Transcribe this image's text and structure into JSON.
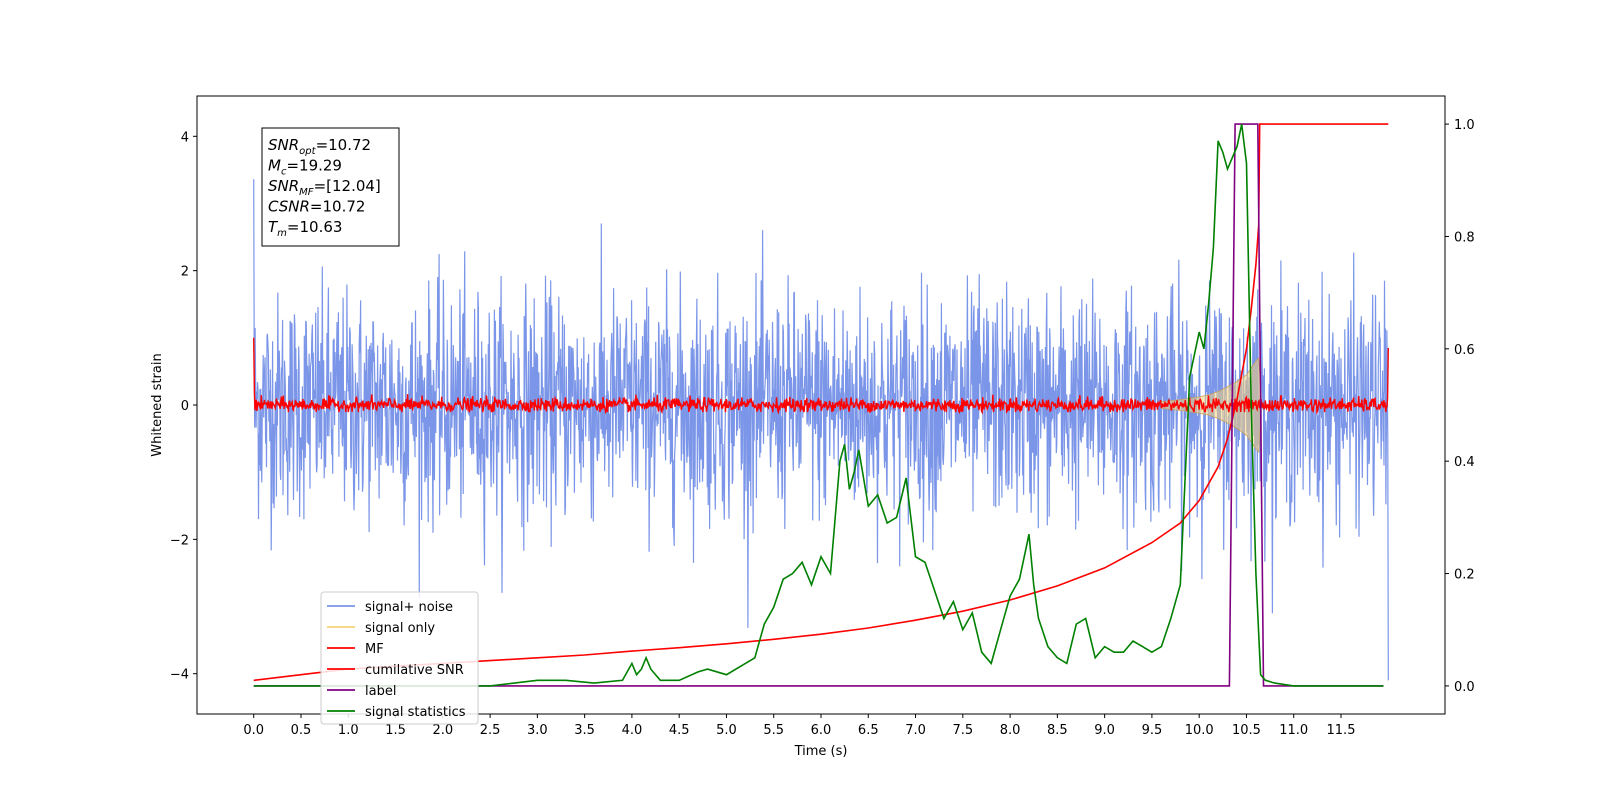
{
  "chart_data": {
    "type": "line",
    "xlabel": "Time (s)",
    "ylabel": "Whitened strain",
    "xlim": [
      -0.6,
      12.6
    ],
    "ylim": [
      -4.6,
      4.6
    ],
    "y2lim": [
      -0.05,
      1.05
    ],
    "grid": false,
    "legend_position": "lower-left",
    "x_ticks": [
      0.0,
      0.5,
      1.0,
      1.5,
      2.0,
      2.5,
      3.0,
      3.5,
      4.0,
      4.5,
      5.0,
      5.5,
      6.0,
      6.5,
      7.0,
      7.5,
      8.0,
      8.5,
      9.0,
      9.5,
      10.0,
      10.5,
      11.0,
      11.5
    ],
    "x_tick_labels": [
      "0.0",
      "0.5",
      "1.0",
      "1.5",
      "2.0",
      "2.5",
      "3.0",
      "3.5",
      "4.0",
      "4.5",
      "5.0",
      "5.5",
      "6.0",
      "6.5",
      "7.0",
      "7.5",
      "8.0",
      "8.5",
      "9.0",
      "9.5",
      "10.0",
      "10.5",
      "11.0",
      "11.5"
    ],
    "y_ticks": [
      -4,
      -2,
      0,
      2,
      4
    ],
    "y_tick_labels": [
      "−4",
      "−2",
      "0",
      "2",
      "4"
    ],
    "y2_ticks": [
      0.0,
      0.2,
      0.4,
      0.6,
      0.8,
      1.0
    ],
    "y2_tick_labels": [
      "0.0",
      "0.2",
      "0.4",
      "0.6",
      "0.8",
      "1.0"
    ],
    "annotation": {
      "lines": [
        {
          "base": "SNR",
          "sub": "opt",
          "value": "=10.72"
        },
        {
          "base": "M",
          "sub": "c",
          "value": "=19.29"
        },
        {
          "base": "SNR",
          "sub": "MF",
          "value": "=[12.04]"
        },
        {
          "base": "CSNR",
          "sub": "",
          "value": "=10.72"
        },
        {
          "base": "T",
          "sub": "m",
          "value": "=10.63"
        }
      ]
    },
    "series": [
      {
        "name": "signal+ noise",
        "color": "#7b96e8",
        "axis": "left",
        "kind": "noise",
        "x_range": [
          0.0,
          12.0
        ],
        "center": 0.0,
        "typical_amplitude": 1.5,
        "max_abs": 4.2,
        "final_x": 12.0,
        "final_y": -4.1
      },
      {
        "name": "signal only",
        "color": "#f5d27a",
        "axis": "left",
        "kind": "chirp",
        "x": [
          9.6,
          9.8,
          10.0,
          10.1,
          10.2,
          10.3,
          10.4,
          10.5,
          10.55,
          10.6,
          10.63,
          10.66
        ],
        "envelope": [
          0.05,
          0.08,
          0.12,
          0.15,
          0.2,
          0.27,
          0.35,
          0.45,
          0.55,
          0.65,
          0.7,
          0.0
        ]
      },
      {
        "name": "MF",
        "color": "#ff0000",
        "axis": "left",
        "kind": "noise",
        "x_range": [
          0.0,
          12.0
        ],
        "center": 0.0,
        "typical_amplitude": 0.12,
        "max_abs": 0.3,
        "start_y": 1.0,
        "end_y": 0.85
      },
      {
        "name": "cumilative SNR",
        "color": "#ff0000",
        "axis": "right",
        "x": [
          0.0,
          0.5,
          1.0,
          1.5,
          2.0,
          2.5,
          3.0,
          3.5,
          4.0,
          4.5,
          5.0,
          5.5,
          6.0,
          6.5,
          7.0,
          7.5,
          8.0,
          8.5,
          9.0,
          9.5,
          9.8,
          10.0,
          10.2,
          10.3,
          10.4,
          10.5,
          10.55,
          10.6,
          10.63,
          10.64,
          12.0
        ],
        "values": [
          0.01,
          0.02,
          0.03,
          0.035,
          0.04,
          0.045,
          0.05,
          0.055,
          0.062,
          0.068,
          0.075,
          0.083,
          0.092,
          0.103,
          0.117,
          0.133,
          0.153,
          0.178,
          0.21,
          0.255,
          0.29,
          0.33,
          0.39,
          0.44,
          0.51,
          0.6,
          0.67,
          0.75,
          0.82,
          1.0,
          1.0
        ]
      },
      {
        "name": "label",
        "color": "#800080",
        "axis": "right",
        "x": [
          0.0,
          10.32,
          10.38,
          10.62,
          10.68,
          11.95
        ],
        "values": [
          0.0,
          0.0,
          1.0,
          1.0,
          0.0,
          0.0
        ]
      },
      {
        "name": "signal statistics",
        "color": "#008000",
        "axis": "right",
        "x": [
          0.0,
          0.5,
          1.0,
          1.5,
          2.0,
          2.5,
          3.0,
          3.3,
          3.6,
          3.9,
          4.0,
          4.05,
          4.1,
          4.15,
          4.2,
          4.3,
          4.5,
          4.7,
          4.8,
          5.0,
          5.2,
          5.3,
          5.4,
          5.5,
          5.6,
          5.7,
          5.8,
          5.9,
          6.0,
          6.1,
          6.15,
          6.2,
          6.25,
          6.3,
          6.35,
          6.4,
          6.5,
          6.6,
          6.7,
          6.8,
          6.9,
          7.0,
          7.1,
          7.2,
          7.3,
          7.4,
          7.5,
          7.6,
          7.7,
          7.8,
          7.9,
          8.0,
          8.1,
          8.2,
          8.25,
          8.3,
          8.4,
          8.5,
          8.6,
          8.7,
          8.8,
          8.9,
          9.0,
          9.1,
          9.2,
          9.3,
          9.4,
          9.5,
          9.6,
          9.7,
          9.8,
          9.9,
          10.0,
          10.05,
          10.1,
          10.15,
          10.2,
          10.25,
          10.3,
          10.4,
          10.45,
          10.5,
          10.55,
          10.6,
          10.65,
          10.7,
          10.8,
          11.0,
          11.95
        ],
        "values": [
          0.0,
          0.0,
          0.0,
          0.0,
          0.0,
          0.0,
          0.01,
          0.01,
          0.005,
          0.01,
          0.04,
          0.02,
          0.03,
          0.05,
          0.03,
          0.01,
          0.01,
          0.025,
          0.03,
          0.02,
          0.04,
          0.05,
          0.11,
          0.14,
          0.19,
          0.2,
          0.22,
          0.18,
          0.23,
          0.2,
          0.3,
          0.4,
          0.43,
          0.35,
          0.38,
          0.42,
          0.32,
          0.34,
          0.29,
          0.3,
          0.37,
          0.23,
          0.22,
          0.17,
          0.12,
          0.15,
          0.1,
          0.13,
          0.06,
          0.04,
          0.1,
          0.16,
          0.19,
          0.27,
          0.18,
          0.12,
          0.07,
          0.05,
          0.04,
          0.11,
          0.12,
          0.05,
          0.07,
          0.06,
          0.06,
          0.08,
          0.07,
          0.06,
          0.07,
          0.12,
          0.18,
          0.55,
          0.63,
          0.6,
          0.68,
          0.78,
          0.97,
          0.95,
          0.92,
          0.96,
          1.0,
          0.93,
          0.5,
          0.2,
          0.02,
          0.01,
          0.005,
          0.0,
          0.0
        ]
      }
    ]
  }
}
